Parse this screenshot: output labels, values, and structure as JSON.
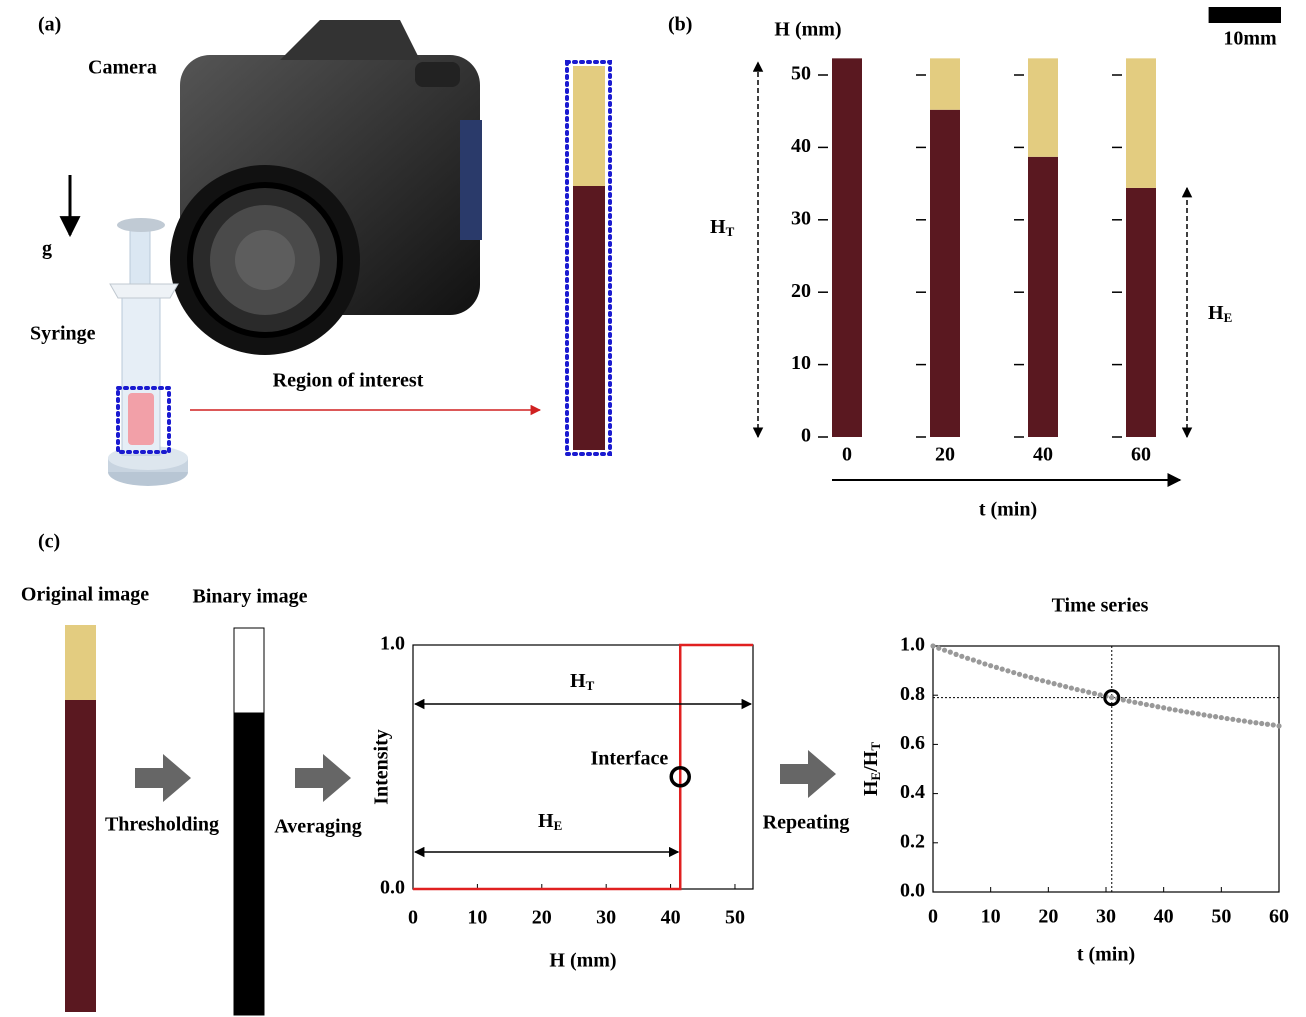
{
  "panel_a": {
    "label": "(a)",
    "camera": "Camera",
    "gravity": "g",
    "syringe": "Syringe",
    "roi": "Region of interest"
  },
  "panel_c": {
    "label": "(c)",
    "original": "Original image",
    "binary": "Binary image",
    "thresholding": "Thresholding",
    "averaging": "Averaging",
    "repeating": "Repeating"
  },
  "chart_data": [
    {
      "type": "tubes",
      "label": "(b)",
      "y_label": "H (mm)",
      "x_label": "t (min)",
      "scale_bar": "10mm",
      "scale_mm": 10,
      "total_label": {
        "main": "H",
        "sub": "T"
      },
      "interface_label": {
        "main": "H",
        "sub": "E"
      },
      "x": [
        0,
        20,
        40,
        60
      ],
      "xlim": [
        0,
        60
      ],
      "values": [
        52.3,
        45.2,
        38.7,
        34.4
      ],
      "ylim": [
        0,
        52.3
      ],
      "yticks": [
        0,
        10,
        20,
        30,
        40,
        50
      ],
      "color": "#5a1820",
      "plasma_color": "#e3cc80"
    },
    {
      "type": "line",
      "x_label": "H (mm)",
      "y_label": "Intensity",
      "xlim": [
        0,
        52.8
      ],
      "ylim": [
        0,
        1
      ],
      "xticks": [
        0,
        10,
        20,
        30,
        40,
        50
      ],
      "yticks": [
        {
          "value": 0,
          "label": "0.0"
        },
        {
          "value": 1,
          "label": "1.0"
        }
      ],
      "series": [
        {
          "color": "#e02020",
          "x": [
            0,
            41.5,
            41.5,
            52.8
          ],
          "values": [
            0,
            0,
            1,
            1
          ]
        }
      ],
      "total_label": {
        "main": "H",
        "sub": "T"
      },
      "interface_label": {
        "main": "H",
        "sub": "E"
      },
      "marker": {
        "label": "Interface",
        "x": 41.5,
        "y": 0.46
      }
    },
    {
      "type": "scatter",
      "title": "Time series",
      "x_label": "t (min)",
      "y_label": {
        "main": "H",
        "sub": "E",
        "main2": "/H",
        "sub2": "T"
      },
      "xlim": [
        0,
        60
      ],
      "ylim": [
        0,
        1
      ],
      "xticks": [
        0,
        10,
        20,
        30,
        40,
        50,
        60
      ],
      "yticks": [
        {
          "value": 0,
          "label": "0.0"
        },
        {
          "value": 0.2,
          "label": "0.2"
        },
        {
          "value": 0.4,
          "label": "0.4"
        },
        {
          "value": 0.6,
          "label": "0.6"
        },
        {
          "value": 0.8,
          "label": "0.8"
        },
        {
          "value": 1,
          "label": "1.0"
        }
      ],
      "color": "#999999",
      "highlight": {
        "x": 31,
        "y": 0.79
      },
      "x": [
        0,
        1,
        2,
        3,
        4,
        5,
        6,
        7,
        8,
        9,
        10,
        11,
        12,
        13,
        14,
        15,
        16,
        17,
        18,
        19,
        20,
        21,
        22,
        23,
        24,
        25,
        26,
        27,
        28,
        29,
        30,
        31,
        32,
        33,
        34,
        35,
        36,
        37,
        38,
        39,
        40,
        41,
        42,
        43,
        44,
        45,
        46,
        47,
        48,
        49,
        50,
        51,
        52,
        53,
        54,
        55,
        56,
        57,
        58,
        59,
        60
      ],
      "values": [
        1.0,
        0.991,
        0.983,
        0.975,
        0.966,
        0.958,
        0.95,
        0.943,
        0.935,
        0.927,
        0.92,
        0.913,
        0.906,
        0.899,
        0.892,
        0.885,
        0.878,
        0.872,
        0.865,
        0.859,
        0.853,
        0.847,
        0.841,
        0.835,
        0.829,
        0.823,
        0.818,
        0.812,
        0.807,
        0.801,
        0.796,
        0.791,
        0.786,
        0.781,
        0.776,
        0.771,
        0.767,
        0.762,
        0.758,
        0.753,
        0.749,
        0.744,
        0.74,
        0.736,
        0.732,
        0.728,
        0.724,
        0.72,
        0.716,
        0.713,
        0.709,
        0.705,
        0.702,
        0.698,
        0.695,
        0.691,
        0.688,
        0.685,
        0.682,
        0.679,
        0.675
      ]
    }
  ]
}
